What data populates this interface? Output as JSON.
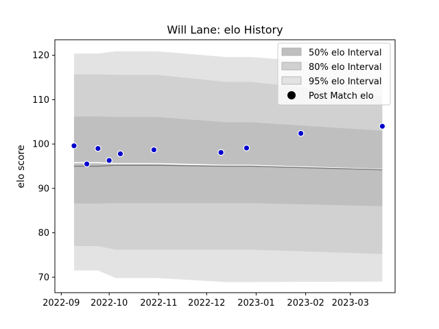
{
  "chart_data": {
    "type": "area",
    "title": "Will Lane: elo History",
    "xlabel": "",
    "ylabel": "elo score",
    "xlim": [
      "2022-08-28",
      "2023-03-29"
    ],
    "ylim": [
      66.5,
      123.5
    ],
    "x_ticks": [
      "2022-09",
      "2022-10",
      "2022-11",
      "2022-12",
      "2023-01",
      "2023-02",
      "2023-03"
    ],
    "x_tick_dates": [
      "2022-09-01",
      "2022-10-01",
      "2022-11-01",
      "2022-12-01",
      "2023-01-01",
      "2023-02-01",
      "2023-03-01"
    ],
    "y_ticks": [
      70,
      80,
      90,
      100,
      110,
      120
    ],
    "dates": [
      "2022-09-09",
      "2022-09-24",
      "2022-10-05",
      "2022-10-31",
      "2022-12-13",
      "2022-12-29",
      "2023-03-21"
    ],
    "bands": [
      {
        "name": "95% elo Interval",
        "color": "#e3e3e3",
        "lower": [
          71.5,
          71.5,
          69.8,
          69.8,
          68.9,
          68.9,
          69.0
        ],
        "upper": [
          120.4,
          120.4,
          120.9,
          120.9,
          119.6,
          119.6,
          117.4
        ]
      },
      {
        "name": "80% elo Interval",
        "color": "#d1d1d1",
        "lower": [
          77.0,
          77.0,
          76.2,
          76.2,
          76.2,
          76.2,
          75.2
        ],
        "upper": [
          115.7,
          115.7,
          115.6,
          115.6,
          114.0,
          114.0,
          110.8
        ]
      },
      {
        "name": "50% elo Interval",
        "color": "#bfbfbf",
        "lower": [
          86.6,
          86.6,
          86.7,
          86.7,
          86.7,
          86.7,
          86.0
        ],
        "upper": [
          106.2,
          106.2,
          106.1,
          106.1,
          104.9,
          104.9,
          103.0
        ]
      }
    ],
    "mean_white": [
      95.8,
      95.8,
      95.6,
      95.6,
      95.2,
      95.2,
      94.3
    ],
    "mean_grey": [
      95.0,
      95.0,
      95.2,
      95.2,
      95.0,
      95.0,
      94.2
    ],
    "points": {
      "name": "Post Match elo",
      "color": "#0000cc",
      "x": [
        "2022-09-09",
        "2022-09-17",
        "2022-09-24",
        "2022-10-01",
        "2022-10-08",
        "2022-10-29",
        "2022-12-10",
        "2022-12-26",
        "2023-01-29",
        "2023-03-21"
      ],
      "y": [
        99.6,
        95.5,
        99.0,
        96.3,
        97.8,
        98.7,
        98.1,
        99.1,
        102.4,
        104.0
      ]
    },
    "legend": {
      "position": "top-right",
      "entries": [
        "50% elo Interval",
        "80% elo Interval",
        "95% elo Interval",
        "Post Match elo"
      ]
    },
    "grid": false
  }
}
